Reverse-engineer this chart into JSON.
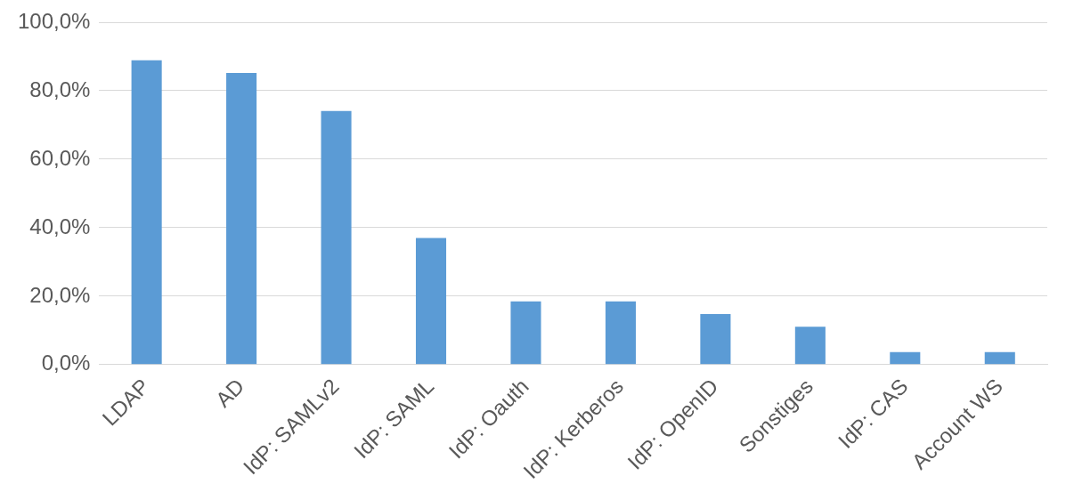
{
  "chart_data": {
    "type": "bar",
    "categories": [
      "LDAP",
      "AD",
      "IdP: SAMLv2",
      "IdP: SAML",
      "IdP: Oauth",
      "IdP: Kerberos",
      "IdP: OpenID",
      "Sonstiges",
      "IdP: CAS",
      "Account WS"
    ],
    "values": [
      88.9,
      85.2,
      74.1,
      37.0,
      18.5,
      18.5,
      14.8,
      11.1,
      3.7,
      3.7
    ],
    "color": "#5b9bd5",
    "ylim": [
      0,
      100
    ],
    "yticks": [
      {
        "value": 0,
        "label": "0,0%"
      },
      {
        "value": 20,
        "label": "20,0%"
      },
      {
        "value": 40,
        "label": "40,0%"
      },
      {
        "value": 60,
        "label": "60,0%"
      },
      {
        "value": 80,
        "label": "80,0%"
      },
      {
        "value": 100,
        "label": "100,0%"
      }
    ],
    "grid": "y",
    "legend": false
  }
}
